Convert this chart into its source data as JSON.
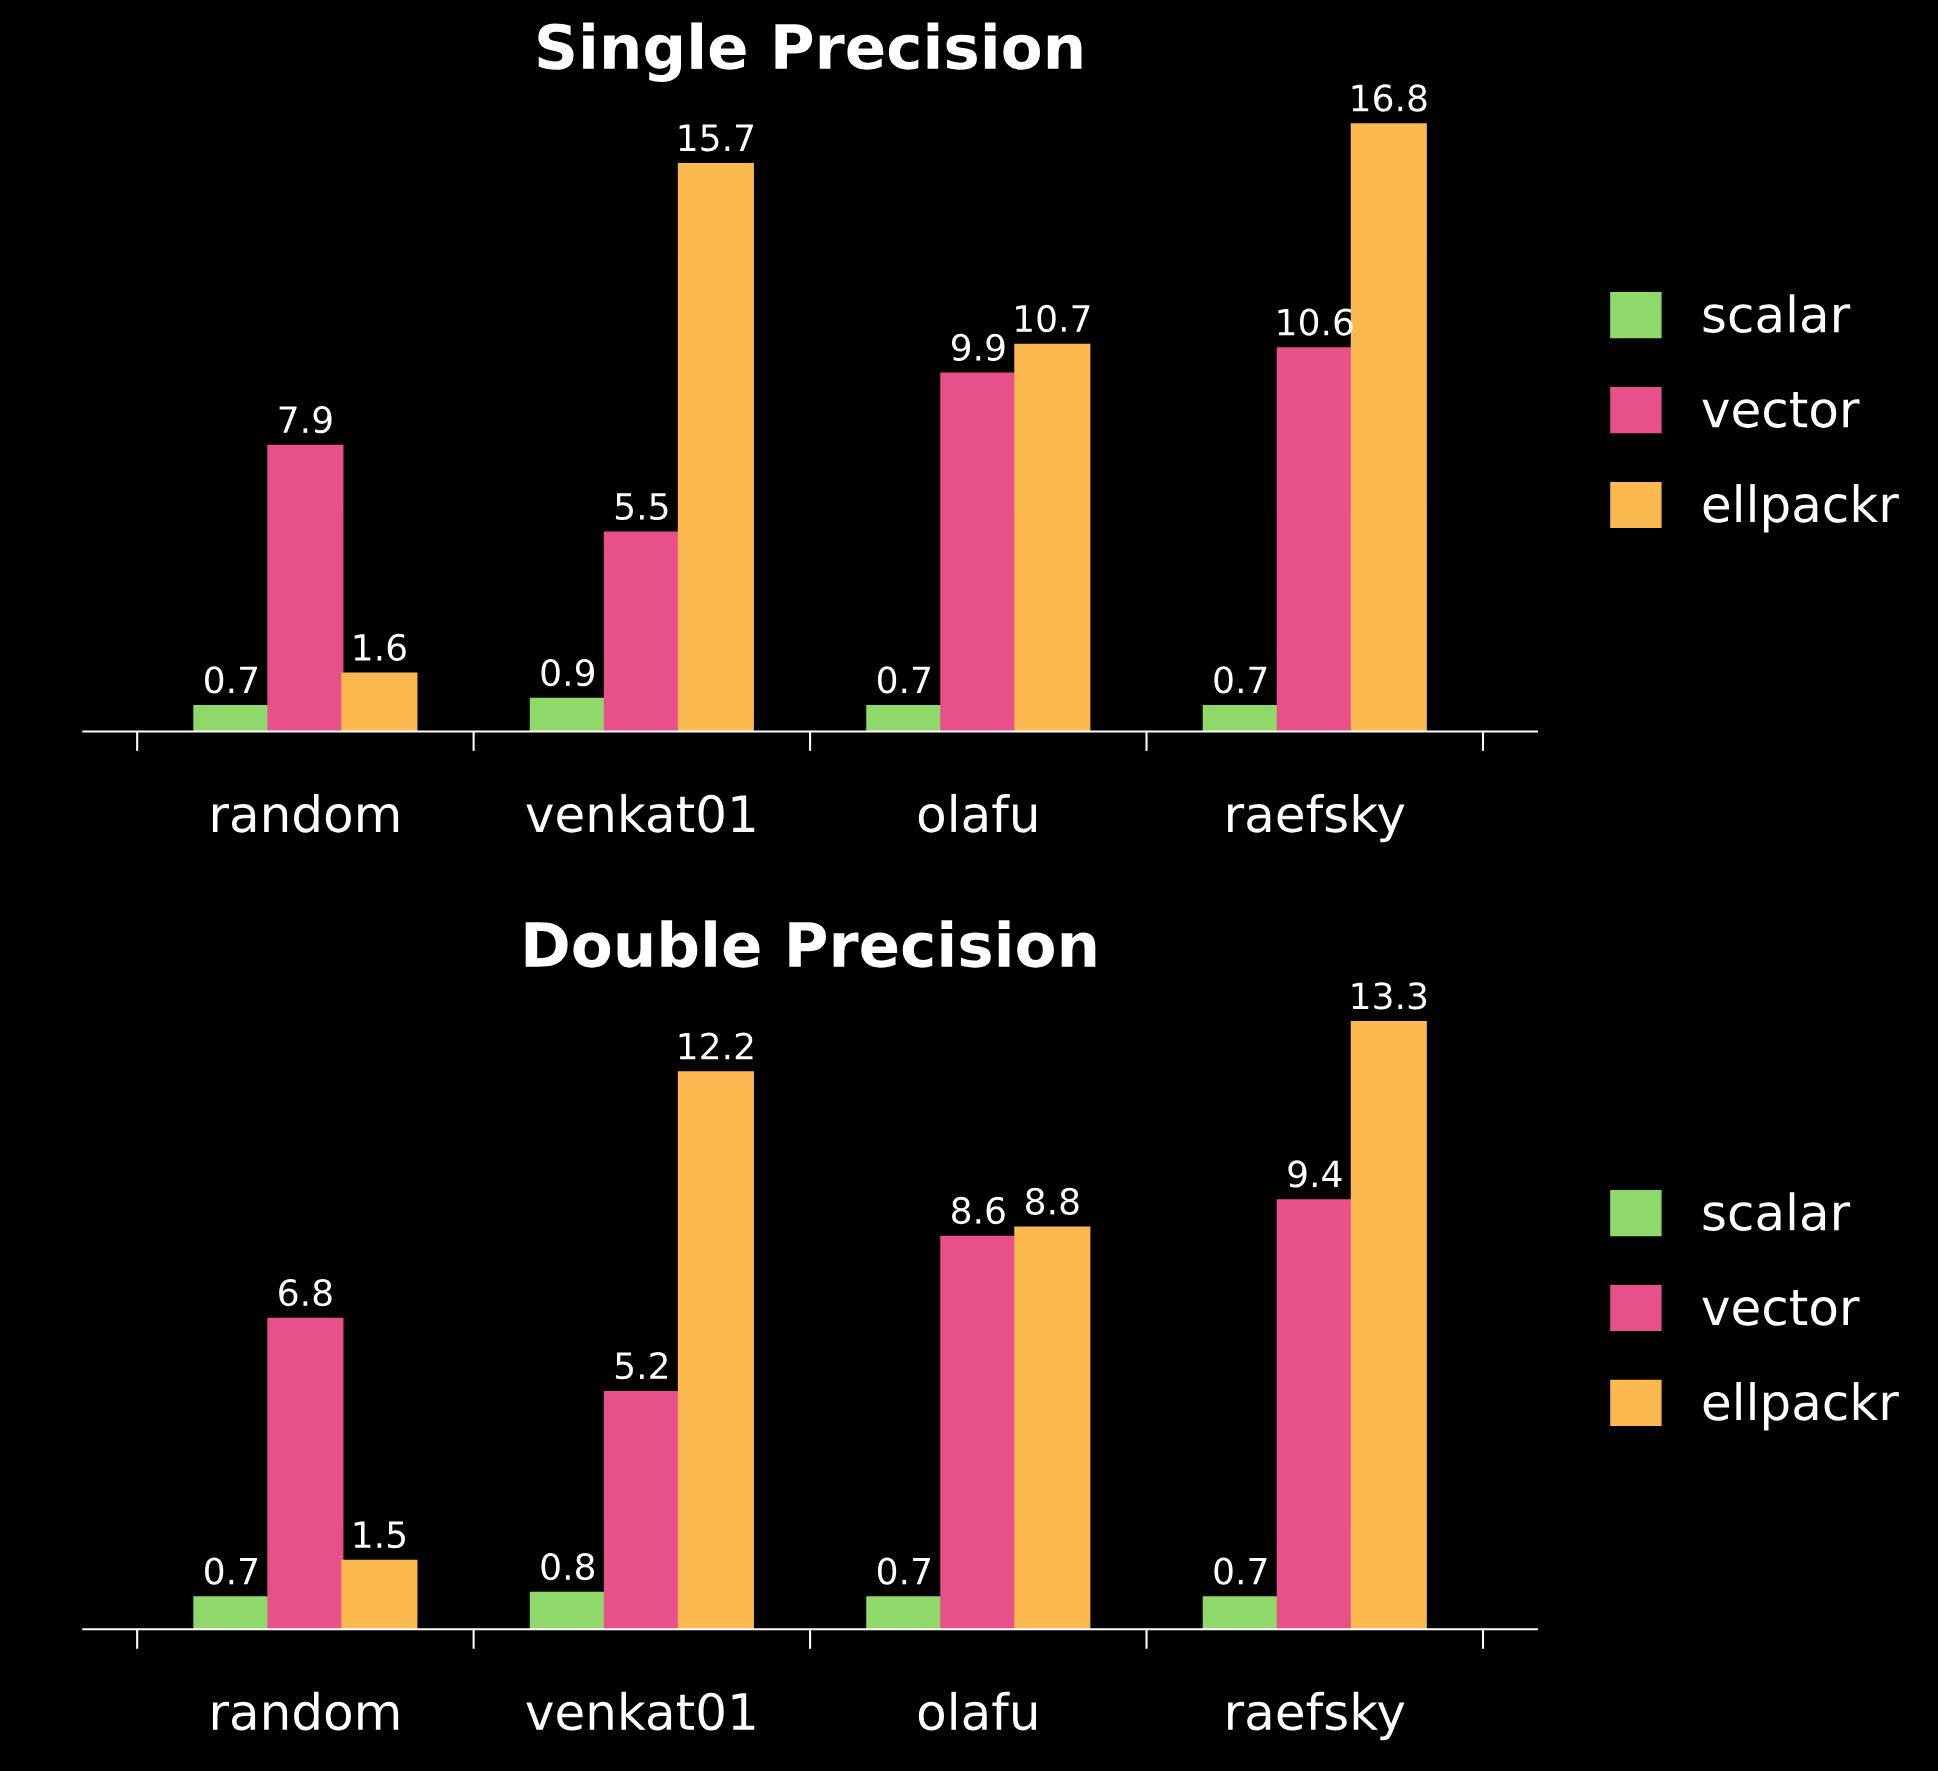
{
  "chart_data": [
    {
      "type": "bar",
      "title": "Single Precision",
      "categories": [
        "random",
        "venkat01",
        "olafu",
        "raefsky"
      ],
      "data_labels": true,
      "legend": "right",
      "grid": false,
      "series": [
        {
          "name": "scalar",
          "color": "#8fd96b",
          "values": [
            0.7,
            0.9,
            0.7,
            0.7
          ]
        },
        {
          "name": "vector",
          "color": "#e8508a",
          "values": [
            7.9,
            5.5,
            9.9,
            10.6
          ]
        },
        {
          "name": "ellpackr",
          "color": "#fbb94f",
          "values": [
            1.6,
            15.7,
            10.7,
            16.8
          ]
        }
      ]
    },
    {
      "type": "bar",
      "title": "Double Precision",
      "categories": [
        "random",
        "venkat01",
        "olafu",
        "raefsky"
      ],
      "data_labels": true,
      "legend": "right",
      "grid": false,
      "series": [
        {
          "name": "scalar",
          "color": "#8fd96b",
          "values": [
            0.7,
            0.8,
            0.7,
            0.7
          ]
        },
        {
          "name": "vector",
          "color": "#e8508a",
          "values": [
            6.8,
            5.2,
            8.6,
            9.4
          ]
        },
        {
          "name": "ellpackr",
          "color": "#fbb94f",
          "values": [
            1.5,
            12.2,
            8.8,
            13.3
          ]
        }
      ]
    }
  ]
}
